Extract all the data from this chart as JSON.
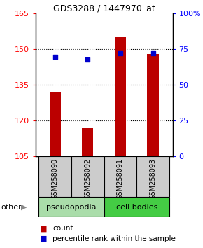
{
  "title": "GDS3288 / 1447970_at",
  "samples": [
    "GSM258090",
    "GSM258092",
    "GSM258091",
    "GSM258093"
  ],
  "counts": [
    132,
    117,
    155,
    148
  ],
  "percentiles": [
    70,
    68,
    72,
    72
  ],
  "ylim_left": [
    105,
    165
  ],
  "yticks_left": [
    105,
    120,
    135,
    150,
    165
  ],
  "ylim_right": [
    0,
    100
  ],
  "yticks_right": [
    0,
    25,
    50,
    75,
    100
  ],
  "bar_color": "#bb0000",
  "dot_color": "#0000cc",
  "groups": [
    {
      "label": "pseudopodia",
      "indices": [
        0,
        1
      ],
      "color": "#aaddaa"
    },
    {
      "label": "cell bodies",
      "indices": [
        2,
        3
      ],
      "color": "#44cc44"
    }
  ],
  "other_label": "other",
  "legend_count_label": "count",
  "legend_percentile_label": "percentile rank within the sample",
  "sample_box_color": "#cccccc",
  "bar_width": 0.35
}
